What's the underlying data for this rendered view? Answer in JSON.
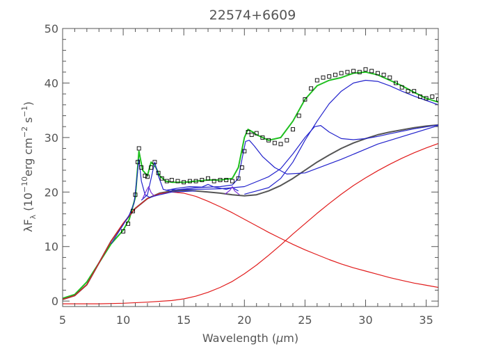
{
  "chart_data": {
    "type": "line",
    "title": "22574+6609",
    "xlabel": "Wavelength (μm)",
    "ylabel": "λFλ (10⁻¹⁰erg cm⁻² s⁻¹)",
    "ylabel_parts": {
      "lambda": "λF",
      "sub": "λ",
      "open": " (10",
      "exp1": "−10",
      "mid": "erg cm",
      "exp2": "−2",
      "mid2": " s",
      "exp3": "−1",
      "close": ")"
    },
    "xlabel_parts": {
      "text": "Wavelength (",
      "mu": "μ",
      "unit": "m)"
    },
    "xlim": [
      5,
      36
    ],
    "ylim": [
      -1,
      50
    ],
    "x_ticks": [
      5,
      10,
      15,
      20,
      25,
      30,
      35
    ],
    "y_ticks": [
      0,
      10,
      20,
      30,
      40,
      50
    ],
    "grid": false,
    "series": [
      {
        "key": "data",
        "kind": "scatter",
        "color": "#000000",
        "x": [
          10.0,
          10.4,
          10.8,
          11.0,
          11.2,
          11.3,
          11.5,
          11.8,
          12.0,
          12.3,
          12.6,
          12.9,
          13.2,
          13.6,
          14.0,
          14.5,
          15.0,
          15.5,
          16.0,
          16.5,
          17.0,
          17.5,
          18.0,
          18.5,
          19.0,
          19.5,
          19.8,
          20.0,
          20.3,
          20.6,
          21.0,
          21.5,
          22.0,
          22.5,
          23.0,
          23.5,
          24.0,
          24.5,
          25.0,
          25.5,
          26.0,
          26.5,
          27.0,
          27.5,
          28.0,
          28.5,
          29.0,
          29.5,
          30.0,
          30.5,
          31.0,
          31.5,
          32.0,
          32.5,
          33.0,
          33.5,
          34.0,
          34.5,
          35.0,
          35.5,
          36.0
        ],
        "y": [
          12.8,
          14.2,
          16.5,
          19.5,
          25.5,
          28.0,
          24.5,
          23.0,
          22.8,
          24.5,
          25.5,
          23.5,
          22.5,
          22.0,
          22.2,
          22.0,
          21.8,
          22.0,
          22.0,
          22.2,
          22.5,
          22.0,
          22.2,
          22.2,
          22.0,
          22.5,
          24.5,
          27.5,
          31.0,
          30.5,
          30.8,
          30.0,
          29.5,
          29.0,
          28.8,
          29.5,
          31.5,
          34.0,
          37.0,
          39.0,
          40.5,
          41.0,
          41.2,
          41.5,
          41.8,
          42.0,
          42.2,
          42.0,
          42.5,
          42.2,
          41.8,
          41.5,
          41.0,
          40.0,
          39.2,
          38.5,
          38.5,
          37.5,
          37.2,
          37.5,
          37.0
        ]
      },
      {
        "key": "total_fit",
        "kind": "line",
        "color": "#1fbf1f",
        "x": [
          5,
          6,
          7,
          8,
          9,
          10,
          10.5,
          11,
          11.3,
          11.6,
          12,
          12.3,
          12.7,
          13,
          13.5,
          14,
          15,
          16,
          17,
          18,
          19,
          19.5,
          20,
          20.3,
          20.7,
          21,
          21.5,
          22,
          23,
          24,
          25,
          26,
          27,
          28,
          29,
          30,
          31,
          32,
          33,
          34,
          35,
          36
        ],
        "y": [
          0.5,
          1.2,
          3.5,
          7,
          10.5,
          13,
          15,
          19,
          27.5,
          24,
          23,
          25.5,
          24.5,
          23,
          22,
          21.8,
          21.8,
          22,
          22.2,
          22.2,
          22.5,
          24.5,
          30,
          31.5,
          31,
          30.5,
          30,
          29.5,
          30,
          33,
          37,
          39.5,
          40.5,
          41,
          41.8,
          42,
          41.5,
          40.5,
          39.5,
          38.3,
          37.2,
          36.5
        ]
      },
      {
        "key": "continuum_dark",
        "kind": "line",
        "color": "#555555",
        "x": [
          5,
          6,
          7,
          8,
          9,
          10,
          11,
          12,
          13,
          14,
          15,
          16,
          17,
          18,
          19,
          20,
          21,
          22,
          23,
          24,
          25,
          26,
          27,
          28,
          29,
          30,
          31,
          32,
          33,
          34,
          35,
          36
        ],
        "y": [
          0.3,
          1,
          3,
          7,
          11,
          14.2,
          17,
          18.8,
          19.8,
          20.2,
          20.3,
          20.2,
          20,
          19.8,
          19.5,
          19.3,
          19.5,
          20.2,
          21.2,
          22.5,
          24,
          25.5,
          26.8,
          28,
          29,
          29.8,
          30.5,
          31,
          31.4,
          31.8,
          32.1,
          32.3
        ]
      },
      {
        "key": "hot_component",
        "kind": "line",
        "color": "#e11b1b",
        "x": [
          5,
          6,
          7,
          8,
          9,
          10,
          11,
          12,
          13,
          14,
          15,
          16,
          17,
          18,
          19,
          20,
          21,
          22,
          23,
          24,
          25,
          26,
          27,
          28,
          29,
          30,
          31,
          32,
          33,
          34,
          35,
          36
        ],
        "y": [
          0.3,
          1,
          3,
          7,
          11,
          14.3,
          17,
          18.8,
          19.7,
          20.0,
          19.8,
          19.2,
          18.3,
          17.3,
          16.2,
          15.0,
          13.8,
          12.6,
          11.5,
          10.4,
          9.4,
          8.5,
          7.6,
          6.8,
          6.1,
          5.5,
          4.9,
          4.3,
          3.8,
          3.3,
          2.9,
          2.5
        ]
      },
      {
        "key": "cold_component",
        "kind": "line",
        "color": "#e11b1b",
        "x": [
          5,
          8,
          10,
          12,
          14,
          15,
          16,
          17,
          18,
          19,
          20,
          21,
          22,
          23,
          24,
          25,
          26,
          27,
          28,
          29,
          30,
          31,
          32,
          33,
          34,
          35,
          36
        ],
        "y": [
          -0.5,
          -0.5,
          -0.4,
          -0.2,
          0.1,
          0.4,
          0.9,
          1.6,
          2.5,
          3.6,
          5,
          6.6,
          8.4,
          10.3,
          12.3,
          14.2,
          16.1,
          17.9,
          19.6,
          21.2,
          22.6,
          23.9,
          25.1,
          26.2,
          27.2,
          28.1,
          28.9
        ]
      },
      {
        "key": "feature_11_3",
        "kind": "line",
        "color": "#2222cc",
        "x": [
          9,
          10,
          10.5,
          10.9,
          11.1,
          11.3,
          11.5,
          11.8,
          12.2,
          12.8,
          14,
          16
        ],
        "y": [
          10.5,
          14,
          15.8,
          18,
          22,
          26,
          22,
          19.5,
          19,
          19.4,
          20,
          20.2
        ]
      },
      {
        "key": "feature_12_7",
        "kind": "line",
        "color": "#2222cc",
        "x": [
          11.5,
          12,
          12.3,
          12.6,
          12.9,
          13.3,
          14
        ],
        "y": [
          18.5,
          19.5,
          22.5,
          25.5,
          23,
          20.5,
          20.1
        ]
      },
      {
        "key": "feature_12_0",
        "kind": "line",
        "color": "#7b2fd6",
        "x": [
          11.6,
          11.9,
          12.1,
          12.3,
          12.6
        ],
        "y": [
          18.8,
          20.2,
          21,
          19.9,
          19.2
        ]
      },
      {
        "key": "feature_20_3",
        "kind": "line",
        "color": "#2222cc",
        "x": [
          14,
          16,
          18,
          19,
          19.5,
          19.8,
          20.1,
          20.4,
          20.8,
          21.5,
          22.5,
          23.5,
          25,
          28,
          31,
          36
        ],
        "y": [
          20.3,
          20.8,
          21.0,
          21.3,
          22.5,
          26,
          29.3,
          29.5,
          28.5,
          26.5,
          24.5,
          23.3,
          23.5,
          26,
          28.8,
          32.2
        ]
      },
      {
        "key": "feature_26_0",
        "kind": "line",
        "color": "#2222cc",
        "x": [
          14,
          18,
          20,
          22,
          23,
          24,
          25,
          25.8,
          26.3,
          27,
          28,
          29,
          30,
          31,
          32,
          34,
          36
        ],
        "y": [
          20.4,
          20.6,
          21,
          22.8,
          24.3,
          27,
          30,
          32,
          32.2,
          31,
          29.8,
          29.6,
          29.8,
          30.2,
          30.7,
          31.6,
          32.3
        ]
      },
      {
        "key": "feature_30_5",
        "kind": "line",
        "color": "#2222cc",
        "x": [
          20,
          22,
          23,
          24,
          25,
          26,
          27,
          28,
          29,
          30,
          31,
          32,
          33,
          34,
          35,
          36
        ],
        "y": [
          19.6,
          20.8,
          22.5,
          25.5,
          29.5,
          33,
          36.2,
          38.5,
          40,
          40.5,
          40.3,
          39.5,
          38.5,
          37.6,
          36.8,
          36
        ]
      },
      {
        "key": "feature_15_17",
        "kind": "line",
        "color": "#2222cc",
        "x": [
          13.5,
          14.5,
          15.5,
          16.5,
          17,
          17.5,
          18.5,
          19,
          19.5
        ],
        "y": [
          20.3,
          20.7,
          21.0,
          20.9,
          21.4,
          20.9,
          20.5,
          20.8,
          20.2
        ]
      },
      {
        "key": "feature_18_9",
        "kind": "line",
        "color": "#7b2fd6",
        "x": [
          18.4,
          18.8,
          19.0,
          19.2,
          19.6
        ],
        "y": [
          19.6,
          20.3,
          21,
          20.2,
          19.5
        ]
      }
    ]
  }
}
